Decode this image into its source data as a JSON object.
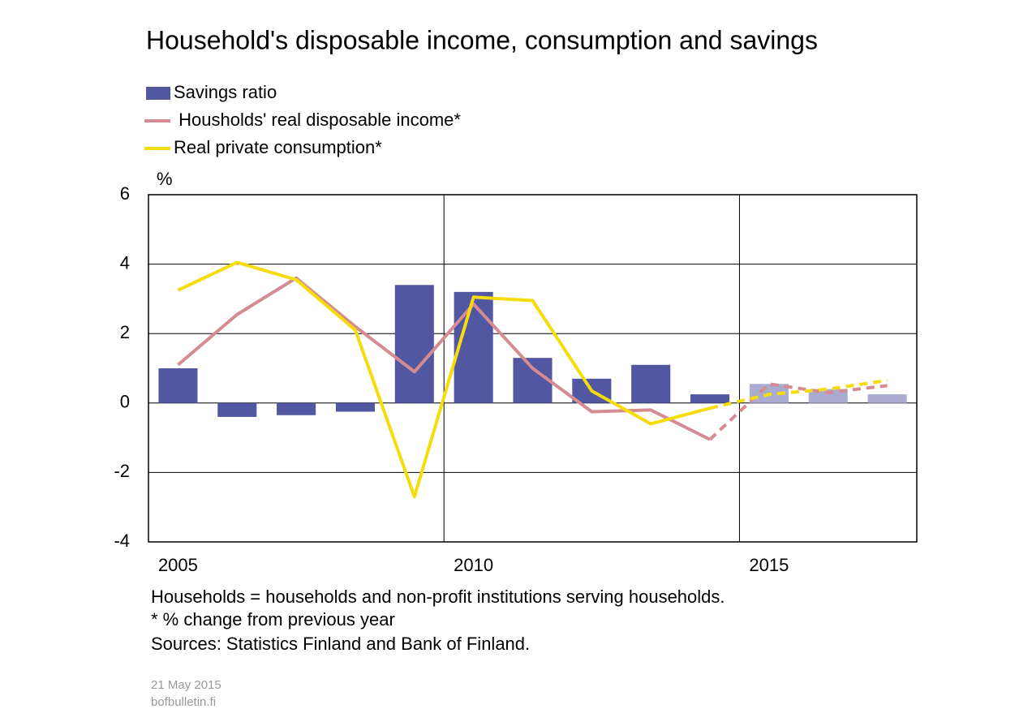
{
  "chart_data": {
    "type": "bar-line",
    "title": "Household's disposable income, consumption and savings",
    "y_unit": "%",
    "categories": [
      "2005",
      null,
      null,
      null,
      null,
      "2010",
      null,
      null,
      null,
      null,
      "2015",
      null,
      null
    ],
    "series": [
      {
        "name": "Savings ratio",
        "kind": "bar",
        "color": "#5157a1",
        "colors": [
          "#5157a1",
          "#5157a1",
          "#5157a1",
          "#5157a1",
          "#5157a1",
          "#5157a1",
          "#5157a1",
          "#5157a1",
          "#5157a1",
          "#5157a1",
          "#a9abd0",
          "#a9abd0",
          "#a9abd0"
        ],
        "values": [
          1.0,
          -0.4,
          -0.35,
          -0.25,
          3.4,
          3.2,
          1.3,
          0.7,
          1.1,
          0.25,
          0.55,
          0.4,
          0.25
        ]
      },
      {
        "name": " Housholds' real disposable income*",
        "kind": "line",
        "color": "#d48c92",
        "styles": [
          "solid",
          "solid",
          "solid",
          "solid",
          "solid",
          "solid",
          "solid",
          "solid",
          "solid",
          "solid",
          "dashed",
          "dashed",
          "dashed"
        ],
        "values": [
          1.1,
          2.55,
          3.6,
          2.2,
          0.9,
          2.85,
          1.0,
          -0.25,
          -0.2,
          -1.05,
          0.55,
          0.3,
          0.5
        ]
      },
      {
        "name": "Real private consumption*",
        "kind": "line",
        "color": "#f5dc0a",
        "styles": [
          "solid",
          "solid",
          "solid",
          "solid",
          "solid",
          "solid",
          "solid",
          "solid",
          "solid",
          "solid",
          "dashed",
          "dashed",
          "dashed"
        ],
        "values": [
          3.25,
          4.05,
          3.55,
          2.1,
          -2.7,
          3.05,
          2.95,
          0.35,
          -0.6,
          -0.15,
          0.25,
          0.4,
          0.65
        ]
      }
    ],
    "ylim": [
      -4,
      6
    ],
    "yticks": [
      -4,
      -2,
      0,
      2,
      4,
      6
    ],
    "grid": true,
    "notes": [
      "Households = households and non-profit institutions serving households.",
      "* % change from previous year",
      "Sources: Statistics Finland and Bank of Finland."
    ],
    "date": "21 May 2015",
    "site": "bofbulletin.fi"
  }
}
